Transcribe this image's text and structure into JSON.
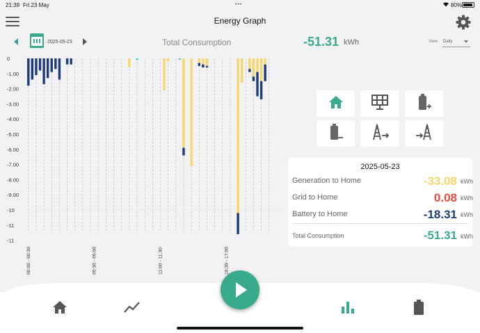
{
  "status_bar": {
    "time": "21:39",
    "date": "Fri 23 May",
    "battery": "80%"
  },
  "header": {
    "title": "Energy Graph"
  },
  "date_nav": {
    "date": "2025-05-23"
  },
  "total": {
    "label": "Total Consumption",
    "value": "-51.31",
    "unit": "kWh"
  },
  "view": {
    "label": "View",
    "selected": "Daily"
  },
  "colors": {
    "accent": "#3aaa8c",
    "generation": "#f5d76e",
    "battery": "#1f3a7a",
    "grid": "#e84a3f",
    "grid_import": "#46c7d6"
  },
  "chart_data": {
    "type": "bar",
    "stacked": true,
    "y_ticks": [
      "0",
      "-1.00",
      "-2.00",
      "-3.00",
      "-4.00",
      "-5.00",
      "-6.00",
      "-7.00",
      "-8.00",
      "-9.00",
      "-10",
      "-11",
      "-11"
    ],
    "ylim": [
      -11.5,
      0
    ],
    "x_tick_labels": [
      "00:00 - 00:30",
      "05:30 - 06:00",
      "11:00 - 11:30",
      "16:30 - 17:00"
    ],
    "series": [
      {
        "values": [
          0,
          0,
          0,
          0,
          0,
          0,
          0,
          0,
          0,
          0,
          0,
          0,
          0,
          0,
          0,
          0,
          0,
          0,
          0,
          0,
          0,
          0,
          0,
          0,
          0,
          0,
          -0.6,
          0,
          0,
          0,
          0,
          0,
          0,
          0,
          0,
          -2.1,
          -0.2,
          0,
          0,
          0,
          -5.9,
          0,
          -7.1,
          0,
          -0.3,
          -0.4,
          -0.5,
          0,
          0,
          0,
          0,
          0,
          0,
          0,
          -10.2,
          -1.6,
          0,
          -0.7,
          -1.2,
          -0.9,
          -1.5,
          -0.4
        ]
      },
      {
        "values": [
          0,
          0,
          0,
          0,
          0,
          0,
          0,
          0,
          0,
          0,
          0,
          0,
          0,
          0,
          0,
          0,
          0,
          0,
          0,
          0,
          0,
          0,
          0,
          0,
          0,
          0,
          0,
          0,
          -0.1,
          0,
          0,
          0,
          0,
          0,
          0,
          0,
          0,
          0,
          0,
          -0.08,
          0,
          0,
          0,
          0,
          0,
          0,
          0,
          0,
          0,
          0,
          0,
          0,
          0,
          0,
          0,
          0,
          0,
          0,
          0,
          0,
          0,
          0
        ]
      },
      {
        "values": [
          -1.8,
          -1.4,
          -1.1,
          -0.8,
          -1.7,
          -1.3,
          -0.9,
          -0.7,
          -1.4,
          0,
          -0.4,
          -0.4,
          0,
          0,
          0,
          0,
          0,
          0,
          0,
          0,
          0,
          0,
          0,
          0,
          0,
          0,
          0,
          0,
          0,
          0,
          0,
          0,
          0,
          0,
          0,
          0,
          0,
          0,
          0,
          0,
          -0.5,
          0,
          0,
          0,
          -0.2,
          -0.2,
          -0.1,
          0,
          0,
          0,
          0,
          0,
          0,
          0,
          -1.4,
          0,
          0,
          -0.2,
          -0.3,
          -1.6,
          -1.2,
          -1.1
        ]
      }
    ]
  },
  "summary": {
    "date": "2025-05-23",
    "rows": [
      {
        "label": "Generation to Home",
        "value": "-33.08",
        "unit": "kWh"
      },
      {
        "label": "Grid to Home",
        "value": "0.08",
        "unit": "kWh"
      },
      {
        "label": "Battery to Home",
        "value": "-18.31",
        "unit": "kWh"
      }
    ],
    "total": {
      "label": "Total Consumption",
      "value": "-51.31",
      "unit": "kWh"
    }
  },
  "icons": {
    "tiles": [
      "home-icon",
      "solar-panel-icon",
      "battery-charge-icon",
      "battery-discharge-icon",
      "grid-export-icon",
      "grid-import-icon"
    ],
    "bottom_nav": [
      "home-icon",
      "trend-icon",
      "play-icon",
      "bar-chart-icon",
      "battery-icon"
    ]
  }
}
